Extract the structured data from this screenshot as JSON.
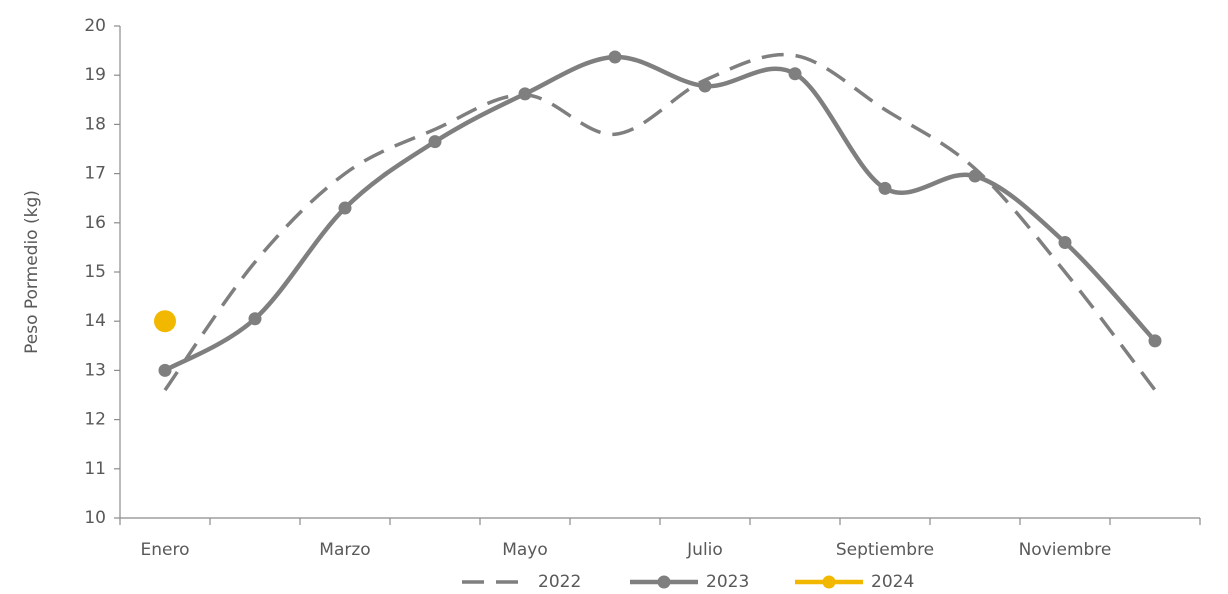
{
  "chart_data": {
    "type": "line",
    "categories": [
      "Enero",
      null,
      "Marzo",
      null,
      "Mayo",
      null,
      "Julio",
      null,
      "Septiembre",
      null,
      "Noviembre",
      null
    ],
    "y_label": "Peso Pormedio (kg)",
    "series": [
      {
        "name": "2022",
        "color": "#7f7f7f",
        "dashed": true,
        "markers": false,
        "values": [
          12.6,
          15.2,
          17.0,
          17.9,
          18.6,
          17.8,
          18.9,
          19.4,
          18.3,
          17.1,
          15.0,
          12.6
        ]
      },
      {
        "name": "2023",
        "color": "#7f7f7f",
        "dashed": false,
        "markers": true,
        "values": [
          13.0,
          14.05,
          16.3,
          17.65,
          18.62,
          19.37,
          18.78,
          19.03,
          16.7,
          16.95,
          15.6,
          13.6
        ]
      },
      {
        "name": "2024",
        "color": "#f2b800",
        "dashed": false,
        "markers": true,
        "values": [
          14.0,
          null,
          null,
          null,
          null,
          null,
          null,
          null,
          null,
          null,
          null,
          null
        ]
      }
    ],
    "ylim": [
      10,
      20
    ],
    "yticks": [
      10,
      11,
      12,
      13,
      14,
      15,
      16,
      17,
      18,
      19,
      20
    ],
    "grid": false,
    "legend": "bottom"
  }
}
